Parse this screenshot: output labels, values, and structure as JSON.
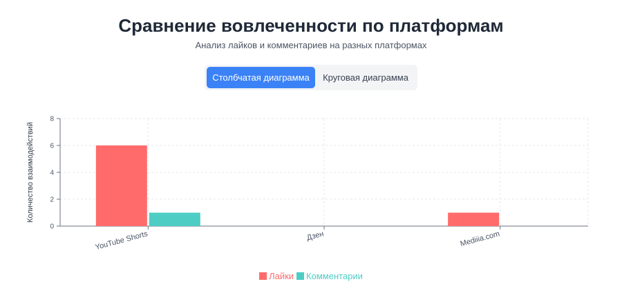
{
  "header": {
    "title": "Сравнение вовлеченности по платформам",
    "subtitle": "Анализ лайков и комментариев на разных платформах"
  },
  "tabs": {
    "bar_label": "Столбчатая диаграмма",
    "pie_label": "Круговая диаграмма",
    "active": "bar"
  },
  "chart_data": {
    "type": "bar",
    "categories": [
      "YouTube Shorts",
      "Дзен",
      "Mediiia.com"
    ],
    "series": [
      {
        "name": "Лайки",
        "values": [
          6,
          0,
          1
        ],
        "color": "#ff6b6b"
      },
      {
        "name": "Комментарии",
        "values": [
          1,
          0,
          0
        ],
        "color": "#4ecdc4"
      }
    ],
    "ylabel": "Количество взаимодействий",
    "ylim": [
      0,
      8
    ],
    "yticks": [
      0,
      2,
      4,
      6,
      8
    ],
    "grid": true,
    "legend_position": "bottom"
  }
}
